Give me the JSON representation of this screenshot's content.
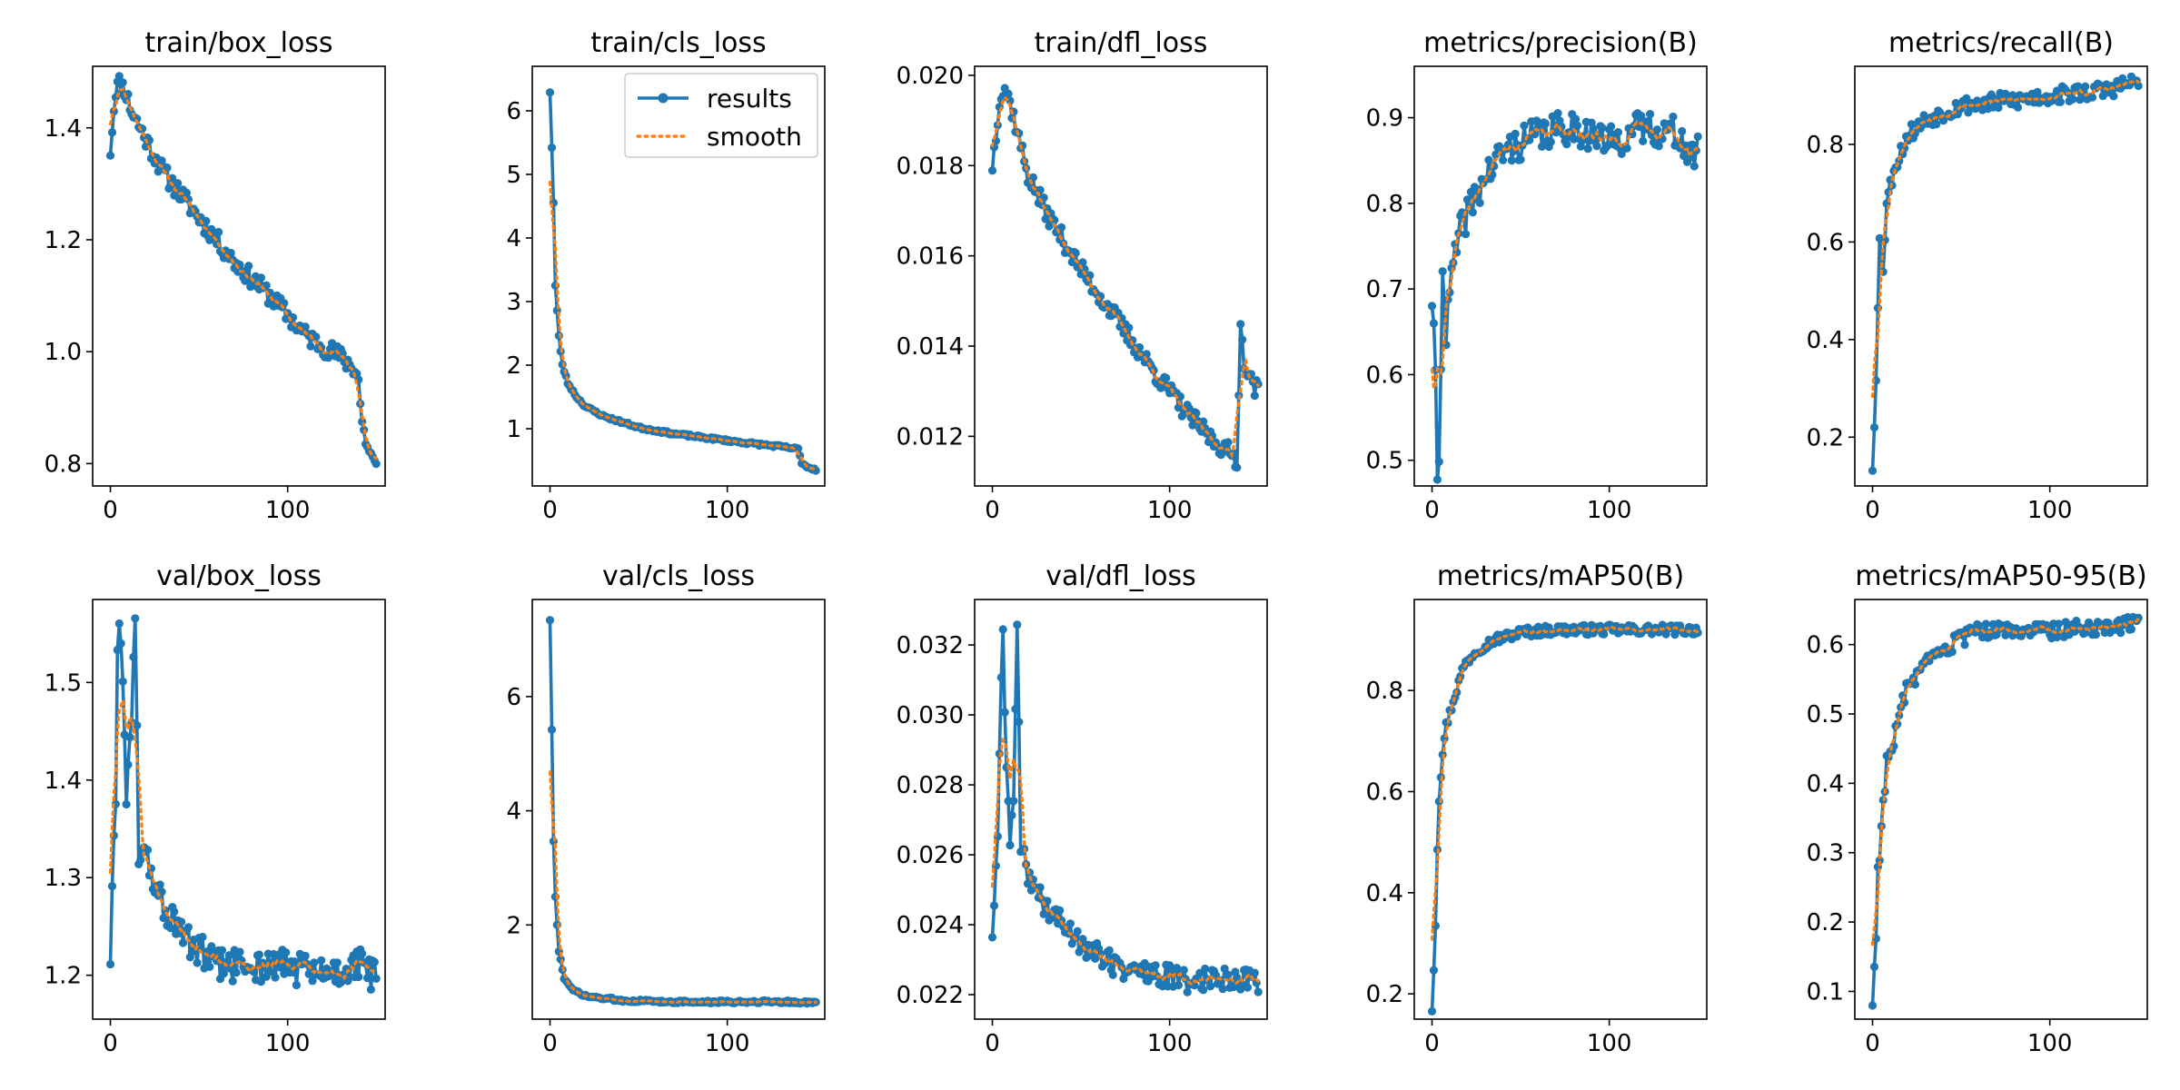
{
  "figure": {
    "legend": {
      "entries": [
        "results",
        "smooth"
      ],
      "placement": "top-right",
      "subplot": "train/cls_loss"
    },
    "colors": {
      "results": "#1f77b4",
      "smooth": "#ff7f0e",
      "axes": "#000000",
      "background": "#ffffff"
    }
  },
  "chart_data": [
    {
      "type": "line",
      "title": "train/box_loss",
      "xlim": [
        -10,
        155
      ],
      "xticks": [
        0,
        100
      ],
      "ylim": [
        0.76,
        1.51
      ],
      "yticks": [
        0.8,
        1.0,
        1.2,
        1.4
      ],
      "ytick_labels": [
        "0.8",
        "1.0",
        "1.2",
        "1.4"
      ],
      "anchors": [
        [
          0,
          1.36
        ],
        [
          1,
          1.4
        ],
        [
          3,
          1.47
        ],
        [
          5,
          1.48
        ],
        [
          8,
          1.47
        ],
        [
          12,
          1.43
        ],
        [
          20,
          1.38
        ],
        [
          30,
          1.32
        ],
        [
          50,
          1.24
        ],
        [
          70,
          1.16
        ],
        [
          90,
          1.1
        ],
        [
          110,
          1.03
        ],
        [
          130,
          0.99
        ],
        [
          138,
          0.97
        ],
        [
          140,
          0.95
        ],
        [
          142,
          0.87
        ],
        [
          145,
          0.83
        ],
        [
          150,
          0.79
        ]
      ],
      "noise": 0.018,
      "seed": 11
    },
    {
      "type": "line",
      "title": "train/cls_loss",
      "xlim": [
        -10,
        155
      ],
      "xticks": [
        0,
        100
      ],
      "ylim": [
        0.1,
        6.7
      ],
      "yticks": [
        1,
        2,
        3,
        4,
        5,
        6
      ],
      "ytick_labels": [
        "1",
        "2",
        "3",
        "4",
        "5",
        "6"
      ],
      "anchors": [
        [
          0,
          6.3
        ],
        [
          2,
          4.55
        ],
        [
          3,
          3.25
        ],
        [
          5,
          2.45
        ],
        [
          7,
          2.0
        ],
        [
          10,
          1.72
        ],
        [
          15,
          1.5
        ],
        [
          20,
          1.35
        ],
        [
          30,
          1.2
        ],
        [
          50,
          1.02
        ],
        [
          70,
          0.92
        ],
        [
          90,
          0.85
        ],
        [
          110,
          0.78
        ],
        [
          130,
          0.72
        ],
        [
          140,
          0.68
        ],
        [
          142,
          0.47
        ],
        [
          145,
          0.4
        ],
        [
          150,
          0.36
        ]
      ],
      "noise": 0.02,
      "seed": 23
    },
    {
      "type": "line",
      "title": "train/dfl_loss",
      "xlim": [
        -10,
        155
      ],
      "xticks": [
        0,
        100
      ],
      "ylim": [
        0.0109,
        0.0202
      ],
      "yticks": [
        0.012,
        0.014,
        0.016,
        0.018,
        0.02
      ],
      "ytick_labels": [
        "0.012",
        "0.014",
        "0.016",
        "0.018",
        "0.020"
      ],
      "anchors": [
        [
          0,
          0.018
        ],
        [
          2,
          0.0187
        ],
        [
          4,
          0.0195
        ],
        [
          7,
          0.0197
        ],
        [
          10,
          0.0194
        ],
        [
          15,
          0.0186
        ],
        [
          20,
          0.0178
        ],
        [
          30,
          0.017
        ],
        [
          50,
          0.0157
        ],
        [
          70,
          0.0146
        ],
        [
          90,
          0.0135
        ],
        [
          110,
          0.0125
        ],
        [
          125,
          0.0119
        ],
        [
          135,
          0.0116
        ],
        [
          138,
          0.0115
        ],
        [
          140,
          0.0144
        ],
        [
          142,
          0.0137
        ],
        [
          146,
          0.0132
        ],
        [
          150,
          0.013
        ]
      ],
      "noise": 0.00022,
      "seed": 37
    },
    {
      "type": "line",
      "title": "metrics/precision(B)",
      "xlim": [
        -10,
        155
      ],
      "xticks": [
        0,
        100
      ],
      "ylim": [
        0.47,
        0.96
      ],
      "yticks": [
        0.5,
        0.6,
        0.7,
        0.8,
        0.9
      ],
      "ytick_labels": [
        "0.5",
        "0.6",
        "0.7",
        "0.8",
        "0.9"
      ],
      "anchors": [
        [
          0,
          0.69
        ],
        [
          2,
          0.59
        ],
        [
          3,
          0.49
        ],
        [
          4,
          0.49
        ],
        [
          6,
          0.74
        ],
        [
          8,
          0.64
        ],
        [
          10,
          0.7
        ],
        [
          15,
          0.76
        ],
        [
          20,
          0.79
        ],
        [
          30,
          0.83
        ],
        [
          40,
          0.86
        ],
        [
          60,
          0.88
        ],
        [
          80,
          0.89
        ],
        [
          100,
          0.87
        ],
        [
          120,
          0.89
        ],
        [
          140,
          0.88
        ],
        [
          145,
          0.85
        ],
        [
          150,
          0.86
        ]
      ],
      "noise": 0.02,
      "seed": 41
    },
    {
      "type": "line",
      "title": "metrics/recall(B)",
      "xlim": [
        -10,
        155
      ],
      "xticks": [
        0,
        100
      ],
      "ylim": [
        0.1,
        0.96
      ],
      "yticks": [
        0.2,
        0.4,
        0.6,
        0.8
      ],
      "ytick_labels": [
        "0.2",
        "0.4",
        "0.6",
        "0.8"
      ],
      "anchors": [
        [
          0,
          0.14
        ],
        [
          2,
          0.33
        ],
        [
          3,
          0.46
        ],
        [
          4,
          0.6
        ],
        [
          6,
          0.55
        ],
        [
          8,
          0.68
        ],
        [
          12,
          0.75
        ],
        [
          20,
          0.82
        ],
        [
          30,
          0.85
        ],
        [
          50,
          0.88
        ],
        [
          80,
          0.89
        ],
        [
          100,
          0.9
        ],
        [
          130,
          0.91
        ],
        [
          150,
          0.93
        ]
      ],
      "noise": 0.018,
      "seed": 53
    },
    {
      "type": "line",
      "title": "val/box_loss",
      "xlim": [
        -10,
        155
      ],
      "xticks": [
        0,
        100
      ],
      "ylim": [
        1.155,
        1.585
      ],
      "yticks": [
        1.2,
        1.3,
        1.4,
        1.5
      ],
      "ytick_labels": [
        "1.2",
        "1.3",
        "1.4",
        "1.5"
      ],
      "anchors": [
        [
          0,
          1.22
        ],
        [
          2,
          1.34
        ],
        [
          3,
          1.36
        ],
        [
          4,
          1.55
        ],
        [
          5,
          1.57
        ],
        [
          7,
          1.5
        ],
        [
          9,
          1.39
        ],
        [
          12,
          1.47
        ],
        [
          14,
          1.55
        ],
        [
          16,
          1.33
        ],
        [
          20,
          1.32
        ],
        [
          30,
          1.27
        ],
        [
          40,
          1.24
        ],
        [
          60,
          1.21
        ],
        [
          80,
          1.21
        ],
        [
          100,
          1.21
        ],
        [
          120,
          1.2
        ],
        [
          140,
          1.21
        ],
        [
          150,
          1.2
        ]
      ],
      "noise": 0.018,
      "seed": 61
    },
    {
      "type": "line",
      "title": "val/cls_loss",
      "xlim": [
        -10,
        155
      ],
      "xticks": [
        0,
        100
      ],
      "ylim": [
        0.35,
        7.7
      ],
      "yticks": [
        2,
        4,
        6
      ],
      "ytick_labels": [
        "2",
        "4",
        "6"
      ],
      "anchors": [
        [
          0,
          7.35
        ],
        [
          2,
          3.45
        ],
        [
          3,
          2.5
        ],
        [
          5,
          1.55
        ],
        [
          8,
          1.05
        ],
        [
          12,
          0.88
        ],
        [
          20,
          0.75
        ],
        [
          40,
          0.68
        ],
        [
          60,
          0.66
        ],
        [
          80,
          0.65
        ],
        [
          100,
          0.65
        ],
        [
          120,
          0.66
        ],
        [
          150,
          0.64
        ]
      ],
      "noise": 0.025,
      "seed": 73
    },
    {
      "type": "line",
      "title": "val/dfl_loss",
      "xlim": [
        -10,
        155
      ],
      "xticks": [
        0,
        100
      ],
      "ylim": [
        0.0213,
        0.0333
      ],
      "yticks": [
        0.022,
        0.024,
        0.026,
        0.028,
        0.03,
        0.032
      ],
      "ytick_labels": [
        "0.022",
        "0.024",
        "0.026",
        "0.028",
        "0.030",
        "0.032"
      ],
      "anchors": [
        [
          0,
          0.0238
        ],
        [
          2,
          0.0255
        ],
        [
          3,
          0.0262
        ],
        [
          5,
          0.0313
        ],
        [
          6,
          0.0323
        ],
        [
          8,
          0.0283
        ],
        [
          10,
          0.0265
        ],
        [
          12,
          0.0275
        ],
        [
          14,
          0.0327
        ],
        [
          16,
          0.0262
        ],
        [
          20,
          0.0255
        ],
        [
          30,
          0.0245
        ],
        [
          50,
          0.0235
        ],
        [
          70,
          0.0228
        ],
        [
          90,
          0.0226
        ],
        [
          110,
          0.0224
        ],
        [
          130,
          0.0225
        ],
        [
          150,
          0.0224
        ]
      ],
      "noise": 0.00035,
      "seed": 89
    },
    {
      "type": "line",
      "title": "metrics/mAP50(B)",
      "xlim": [
        -10,
        155
      ],
      "xticks": [
        0,
        100
      ],
      "ylim": [
        0.15,
        0.98
      ],
      "yticks": [
        0.2,
        0.4,
        0.6,
        0.8
      ],
      "ytick_labels": [
        "0.2",
        "0.4",
        "0.6",
        "0.8"
      ],
      "anchors": [
        [
          0,
          0.17
        ],
        [
          2,
          0.34
        ],
        [
          3,
          0.49
        ],
        [
          4,
          0.59
        ],
        [
          6,
          0.68
        ],
        [
          8,
          0.73
        ],
        [
          12,
          0.78
        ],
        [
          18,
          0.85
        ],
        [
          25,
          0.88
        ],
        [
          35,
          0.9
        ],
        [
          50,
          0.915
        ],
        [
          70,
          0.92
        ],
        [
          100,
          0.92
        ],
        [
          150,
          0.92
        ]
      ],
      "noise": 0.01,
      "seed": 97
    },
    {
      "type": "line",
      "title": "metrics/mAP50-95(B)",
      "xlim": [
        -10,
        155
      ],
      "xticks": [
        0,
        100
      ],
      "ylim": [
        0.06,
        0.665
      ],
      "yticks": [
        0.1,
        0.2,
        0.3,
        0.4,
        0.5,
        0.6
      ],
      "ytick_labels": [
        "0.1",
        "0.2",
        "0.3",
        "0.4",
        "0.5",
        "0.6"
      ],
      "anchors": [
        [
          0,
          0.085
        ],
        [
          2,
          0.18
        ],
        [
          3,
          0.28
        ],
        [
          4,
          0.3
        ],
        [
          6,
          0.37
        ],
        [
          8,
          0.43
        ],
        [
          12,
          0.46
        ],
        [
          16,
          0.51
        ],
        [
          20,
          0.54
        ],
        [
          30,
          0.57
        ],
        [
          45,
          0.6
        ],
        [
          60,
          0.62
        ],
        [
          80,
          0.62
        ],
        [
          100,
          0.62
        ],
        [
          120,
          0.625
        ],
        [
          150,
          0.63
        ]
      ],
      "noise": 0.012,
      "seed": 103
    }
  ]
}
